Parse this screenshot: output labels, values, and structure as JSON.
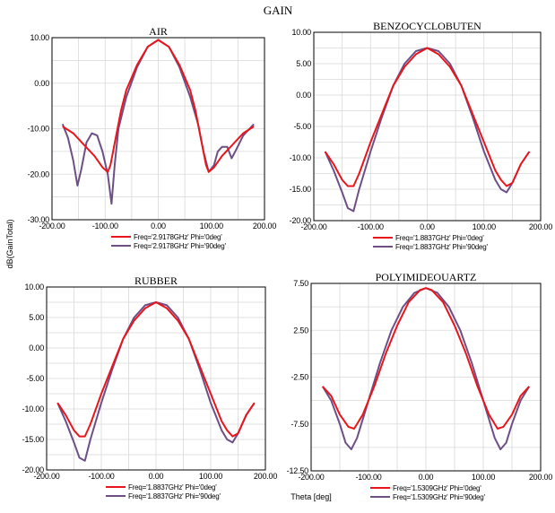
{
  "figure": {
    "title": "GAIN",
    "ylabel": "dB(GainTotal)",
    "xlabel": "Theta [deg]"
  },
  "colors": {
    "phi0": "#e8161c",
    "phi90": "#6d4f86"
  },
  "chart_data": [
    {
      "type": "line",
      "title": "AIR",
      "xlim": [
        -200,
        200
      ],
      "ylim": [
        -30,
        10
      ],
      "x_ticks": [
        "-200.00",
        "-100.00",
        "0.00",
        "100.00",
        "200.00"
      ],
      "y_ticks": [
        "10.00",
        "0.00",
        "-10.00",
        "-20.00",
        "-30.00"
      ],
      "series": [
        {
          "name": "Freq='2.9178GHz' Phi='0deg'",
          "color": "#e8161c",
          "points": [
            [
              -180,
              -9.5
            ],
            [
              -160,
              -11
            ],
            [
              -140,
              -13.5
            ],
            [
              -120,
              -16
            ],
            [
              -105,
              -18.5
            ],
            [
              -95,
              -19.5
            ],
            [
              -90,
              -18
            ],
            [
              -80,
              -12
            ],
            [
              -70,
              -6
            ],
            [
              -60,
              -1.5
            ],
            [
              -40,
              4
            ],
            [
              -20,
              8
            ],
            [
              0,
              9.5
            ],
            [
              20,
              8
            ],
            [
              40,
              4
            ],
            [
              60,
              -1.5
            ],
            [
              70,
              -6
            ],
            [
              80,
              -12
            ],
            [
              90,
              -18
            ],
            [
              95,
              -19.5
            ],
            [
              105,
              -18.5
            ],
            [
              120,
              -16
            ],
            [
              140,
              -13.5
            ],
            [
              160,
              -11
            ],
            [
              180,
              -9.5
            ]
          ]
        },
        {
          "name": "Freq='2.9178GHz' Phi='90deg'",
          "color": "#6d4f86",
          "points": [
            [
              -180,
              -9
            ],
            [
              -170,
              -12
            ],
            [
              -160,
              -17
            ],
            [
              -152,
              -22.5
            ],
            [
              -145,
              -19
            ],
            [
              -135,
              -13
            ],
            [
              -125,
              -11
            ],
            [
              -115,
              -11.5
            ],
            [
              -105,
              -15
            ],
            [
              -95,
              -20
            ],
            [
              -88,
              -26.5
            ],
            [
              -82,
              -18
            ],
            [
              -75,
              -10
            ],
            [
              -60,
              -3
            ],
            [
              -40,
              3.5
            ],
            [
              -20,
              8
            ],
            [
              0,
              9.5
            ],
            [
              20,
              8
            ],
            [
              40,
              3.5
            ],
            [
              60,
              -3
            ],
            [
              75,
              -9
            ],
            [
              85,
              -15
            ],
            [
              95,
              -19.5
            ],
            [
              105,
              -18
            ],
            [
              112,
              -15
            ],
            [
              120,
              -14
            ],
            [
              130,
              -14
            ],
            [
              138,
              -16.5
            ],
            [
              145,
              -15
            ],
            [
              160,
              -11.5
            ],
            [
              180,
              -9
            ]
          ]
        }
      ]
    },
    {
      "type": "line",
      "title": "BENZOCYCLOBUTEN",
      "xlim": [
        -200,
        200
      ],
      "ylim": [
        -20,
        10
      ],
      "x_ticks": [
        "-200.00",
        "-100.00",
        "0.00",
        "100.00",
        "200.00"
      ],
      "y_ticks": [
        "10.00",
        "5.00",
        "0.00",
        "-5.00",
        "-10.00",
        "-15.00",
        "-20.00"
      ],
      "series": [
        {
          "name": "Freq='1.8837GHz' Phi='0deg'",
          "color": "#e8161c",
          "points": [
            [
              -180,
              -9
            ],
            [
              -165,
              -11
            ],
            [
              -150,
              -13.5
            ],
            [
              -140,
              -14.5
            ],
            [
              -130,
              -14.5
            ],
            [
              -120,
              -12.5
            ],
            [
              -100,
              -7.5
            ],
            [
              -80,
              -3
            ],
            [
              -60,
              1.5
            ],
            [
              -40,
              4.5
            ],
            [
              -20,
              6.5
            ],
            [
              0,
              7.5
            ],
            [
              20,
              6.5
            ],
            [
              40,
              4.5
            ],
            [
              60,
              1.5
            ],
            [
              80,
              -3
            ],
            [
              100,
              -7.5
            ],
            [
              120,
              -12
            ],
            [
              130,
              -13.5
            ],
            [
              140,
              -14.5
            ],
            [
              150,
              -14
            ],
            [
              165,
              -11
            ],
            [
              180,
              -9
            ]
          ]
        },
        {
          "name": "Freq='1.8837GHz' Phi='90deg'",
          "color": "#6d4f86",
          "points": [
            [
              -180,
              -9
            ],
            [
              -165,
              -12
            ],
            [
              -150,
              -15.5
            ],
            [
              -140,
              -18
            ],
            [
              -130,
              -18.5
            ],
            [
              -120,
              -15
            ],
            [
              -100,
              -9
            ],
            [
              -80,
              -3.5
            ],
            [
              -60,
              1.5
            ],
            [
              -40,
              5
            ],
            [
              -20,
              7
            ],
            [
              0,
              7.5
            ],
            [
              20,
              7
            ],
            [
              40,
              5
            ],
            [
              60,
              1.5
            ],
            [
              80,
              -3.5
            ],
            [
              100,
              -9
            ],
            [
              120,
              -13.5
            ],
            [
              130,
              -15
            ],
            [
              140,
              -15.5
            ],
            [
              150,
              -14
            ],
            [
              165,
              -11
            ],
            [
              180,
              -9
            ]
          ]
        }
      ]
    },
    {
      "type": "line",
      "title": "RUBBER",
      "xlim": [
        -200,
        200
      ],
      "ylim": [
        -20,
        10
      ],
      "x_ticks": [
        "-200.00",
        "-100.00",
        "0.00",
        "100.00",
        "200.00"
      ],
      "y_ticks": [
        "10.00",
        "5.00",
        "0.00",
        "-5.00",
        "-10.00",
        "-15.00",
        "-20.00"
      ],
      "series": [
        {
          "name": "Freq='1.8837GHz' Phi='0deg'",
          "color": "#e8161c",
          "points": [
            [
              -180,
              -9
            ],
            [
              -165,
              -11
            ],
            [
              -150,
              -13.5
            ],
            [
              -140,
              -14.5
            ],
            [
              -130,
              -14.5
            ],
            [
              -120,
              -12.5
            ],
            [
              -100,
              -7.5
            ],
            [
              -80,
              -3
            ],
            [
              -60,
              1.5
            ],
            [
              -40,
              4.5
            ],
            [
              -20,
              6.5
            ],
            [
              0,
              7.5
            ],
            [
              20,
              6.5
            ],
            [
              40,
              4.5
            ],
            [
              60,
              1.5
            ],
            [
              80,
              -3
            ],
            [
              100,
              -7.5
            ],
            [
              120,
              -12
            ],
            [
              130,
              -13.5
            ],
            [
              140,
              -14.5
            ],
            [
              150,
              -14
            ],
            [
              165,
              -11
            ],
            [
              180,
              -9
            ]
          ]
        },
        {
          "name": "Freq='1.8837GHz' Phi='90deg'",
          "color": "#6d4f86",
          "points": [
            [
              -180,
              -9
            ],
            [
              -165,
              -12
            ],
            [
              -150,
              -15.5
            ],
            [
              -140,
              -18
            ],
            [
              -130,
              -18.5
            ],
            [
              -120,
              -15
            ],
            [
              -100,
              -9
            ],
            [
              -80,
              -3.5
            ],
            [
              -60,
              1.5
            ],
            [
              -40,
              5
            ],
            [
              -20,
              7
            ],
            [
              0,
              7.5
            ],
            [
              20,
              7
            ],
            [
              40,
              5
            ],
            [
              60,
              1.5
            ],
            [
              80,
              -3.5
            ],
            [
              100,
              -9
            ],
            [
              120,
              -13.5
            ],
            [
              130,
              -15
            ],
            [
              140,
              -15.5
            ],
            [
              150,
              -14
            ],
            [
              165,
              -11
            ],
            [
              180,
              -9
            ]
          ]
        }
      ]
    },
    {
      "type": "line",
      "title": "POLYIMIDEOUARTZ",
      "xlim": [
        -200,
        200
      ],
      "ylim": [
        -12.5,
        7.5
      ],
      "x_ticks": [
        "-200.00",
        "-100.00",
        "0.00",
        "100.00",
        "200.00"
      ],
      "y_ticks": [
        "7.50",
        "2.50",
        "-2.50",
        "-7.50",
        "-12.50"
      ],
      "series": [
        {
          "name": "Freq='1.5309GHz' Phi='0deg'",
          "color": "#e8161c",
          "points": [
            [
              -180,
              -3.5
            ],
            [
              -165,
              -4.5
            ],
            [
              -150,
              -6.5
            ],
            [
              -135,
              -7.8
            ],
            [
              -125,
              -8
            ],
            [
              -110,
              -6.5
            ],
            [
              -90,
              -3.5
            ],
            [
              -70,
              0
            ],
            [
              -50,
              3
            ],
            [
              -30,
              5.5
            ],
            [
              -10,
              6.8
            ],
            [
              0,
              7
            ],
            [
              10,
              6.8
            ],
            [
              30,
              5.5
            ],
            [
              50,
              3
            ],
            [
              70,
              0
            ],
            [
              90,
              -3.5
            ],
            [
              110,
              -6.5
            ],
            [
              125,
              -8
            ],
            [
              135,
              -7.8
            ],
            [
              150,
              -6.5
            ],
            [
              165,
              -4.5
            ],
            [
              180,
              -3.5
            ]
          ]
        },
        {
          "name": "Freq='1.5309GHz' Phi='90deg'",
          "color": "#6d4f86",
          "points": [
            [
              -180,
              -3.5
            ],
            [
              -165,
              -5
            ],
            [
              -150,
              -7.5
            ],
            [
              -140,
              -9.5
            ],
            [
              -130,
              -10.2
            ],
            [
              -120,
              -9
            ],
            [
              -100,
              -5
            ],
            [
              -80,
              -1
            ],
            [
              -60,
              2.5
            ],
            [
              -40,
              5
            ],
            [
              -20,
              6.5
            ],
            [
              0,
              7
            ],
            [
              20,
              6.5
            ],
            [
              40,
              5
            ],
            [
              60,
              2.5
            ],
            [
              80,
              -1
            ],
            [
              100,
              -5
            ],
            [
              120,
              -9
            ],
            [
              130,
              -10.2
            ],
            [
              140,
              -9.5
            ],
            [
              150,
              -7.5
            ],
            [
              165,
              -5
            ],
            [
              180,
              -3.5
            ]
          ]
        }
      ]
    }
  ]
}
